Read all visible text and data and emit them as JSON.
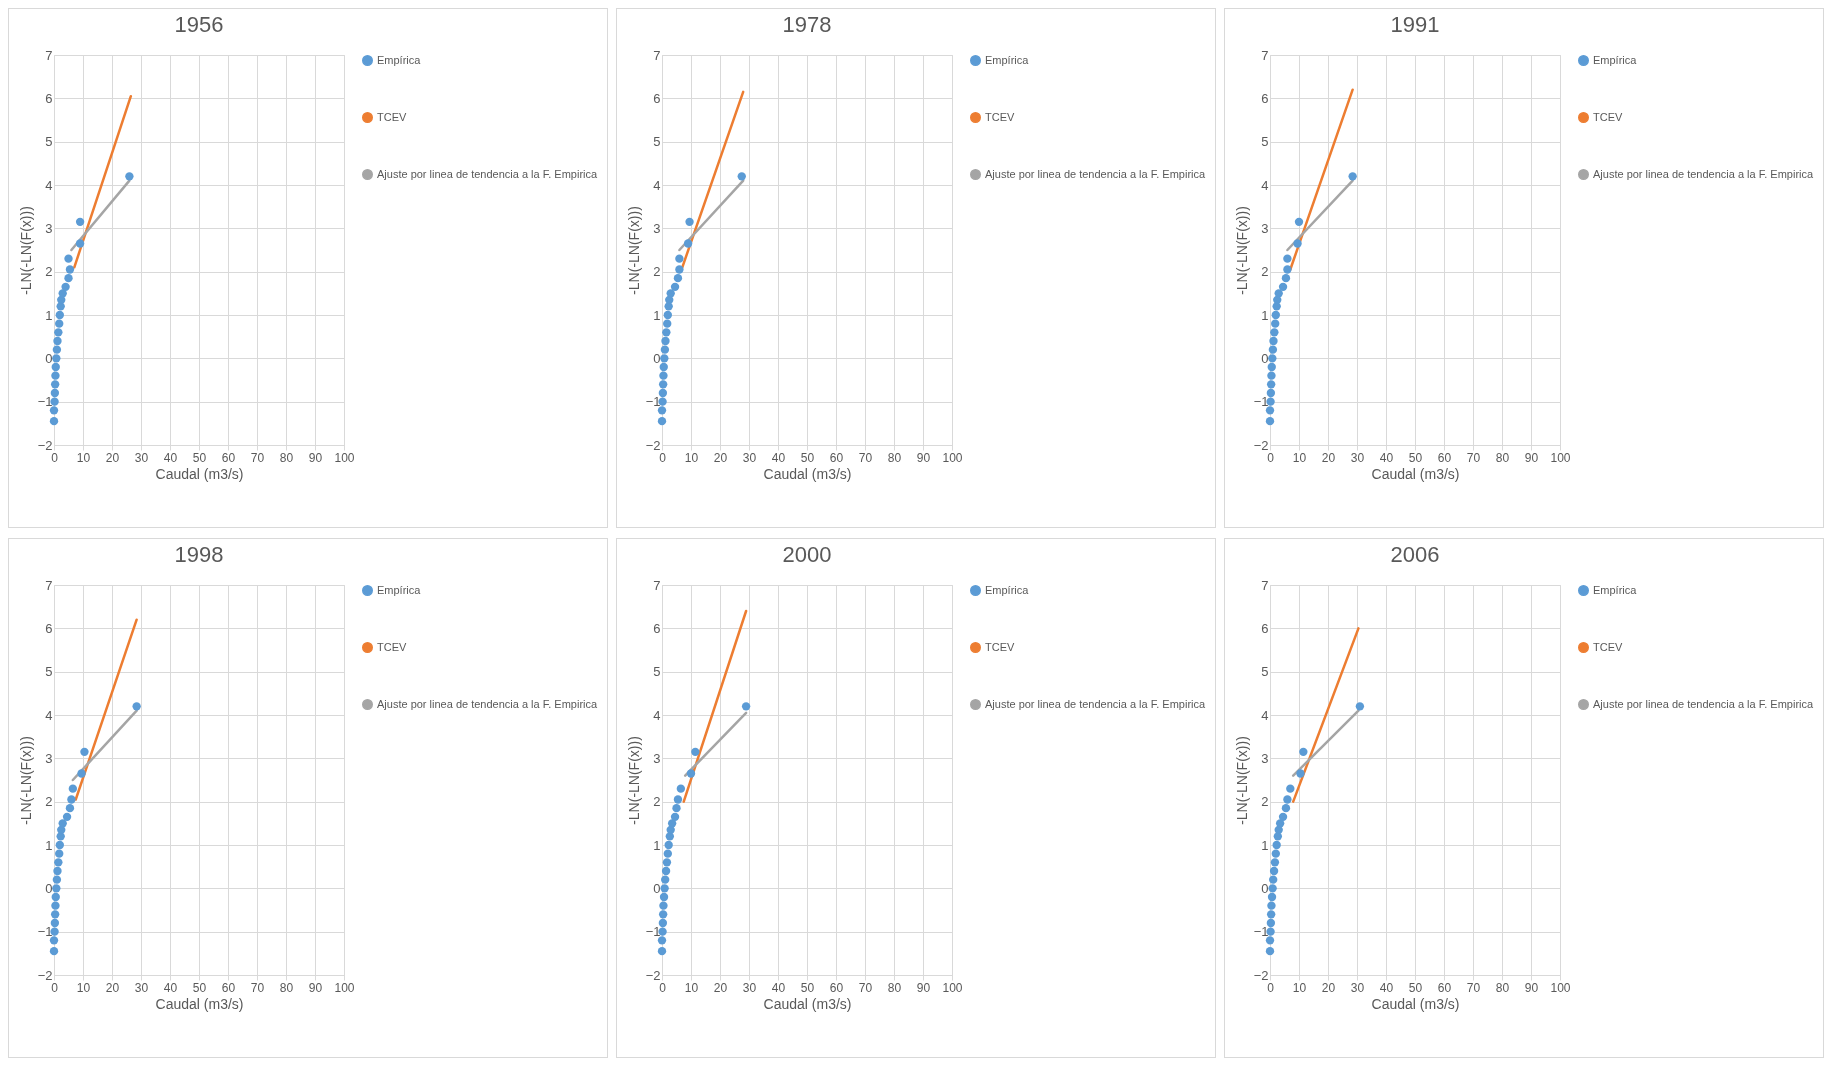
{
  "chart_data": [
    {
      "type": "scatter",
      "title": "1956",
      "xlabel": "Caudal (m3/s)",
      "ylabel": "-LN(-LN(F(x)))",
      "xlim": [
        0,
        100
      ],
      "ylim": [
        -2,
        7
      ],
      "xticks": [
        0,
        10,
        20,
        30,
        40,
        50,
        60,
        70,
        80,
        90,
        100
      ],
      "yticks": [
        -2,
        -1,
        0,
        1,
        2,
        3,
        4,
        5,
        6,
        7
      ],
      "grid": true,
      "legend": "right",
      "series": [
        {
          "name": "Empírica",
          "type": "scatter",
          "marker": "circle",
          "color": "#5b9bd5",
          "x": [
            0,
            0,
            0.2,
            0.3,
            0.4,
            0.5,
            0.6,
            0.8,
            1,
            1.2,
            1.5,
            1.8,
            2,
            2.3,
            2.5,
            3,
            4,
            5,
            5.5,
            5,
            9,
            9,
            26
          ],
          "values": [
            -1.45,
            -1.2,
            -1.0,
            -0.8,
            -0.6,
            -0.4,
            -0.2,
            0,
            0.2,
            0.4,
            0.6,
            0.8,
            1.0,
            1.2,
            1.35,
            1.5,
            1.65,
            1.85,
            2.05,
            2.3,
            2.65,
            3.15,
            4.2
          ]
        },
        {
          "name": "TCEV",
          "type": "line",
          "color": "#ed7d31",
          "x": [
            7,
            26.5
          ],
          "values": [
            2.1,
            6.05
          ]
        },
        {
          "name": "Ajuste por linea de tendencia a la F. Empirica",
          "type": "line",
          "color": "#a5a5a5",
          "x": [
            6,
            26
          ],
          "values": [
            2.5,
            4.1
          ]
        }
      ]
    },
    {
      "type": "scatter",
      "title": "1978",
      "xlabel": "Caudal (m3/s)",
      "ylabel": "-LN(-LN(F(x)))",
      "xlim": [
        0,
        100
      ],
      "ylim": [
        -2,
        7
      ],
      "xticks": [
        0,
        10,
        20,
        30,
        40,
        50,
        60,
        70,
        80,
        90,
        100
      ],
      "yticks": [
        -2,
        -1,
        0,
        1,
        2,
        3,
        4,
        5,
        6,
        7
      ],
      "grid": true,
      "legend": "right",
      "series": [
        {
          "name": "Empírica",
          "type": "scatter",
          "marker": "circle",
          "color": "#5b9bd5",
          "x": [
            0,
            0,
            0.2,
            0.3,
            0.4,
            0.5,
            0.6,
            0.8,
            1,
            1.2,
            1.5,
            1.8,
            2,
            2.3,
            2.5,
            3,
            4.5,
            5.5,
            6,
            6,
            9,
            9.5,
            27.5
          ],
          "values": [
            -1.45,
            -1.2,
            -1.0,
            -0.8,
            -0.6,
            -0.4,
            -0.2,
            0,
            0.2,
            0.4,
            0.6,
            0.8,
            1.0,
            1.2,
            1.35,
            1.5,
            1.65,
            1.85,
            2.05,
            2.3,
            2.65,
            3.15,
            4.2
          ]
        },
        {
          "name": "TCEV",
          "type": "line",
          "color": "#ed7d31",
          "x": [
            7,
            28
          ],
          "values": [
            2.1,
            6.15
          ]
        },
        {
          "name": "Ajuste por linea de tendencia a la F. Empirica",
          "type": "line",
          "color": "#a5a5a5",
          "x": [
            6,
            28
          ],
          "values": [
            2.5,
            4.1
          ]
        }
      ]
    },
    {
      "type": "scatter",
      "title": "1991",
      "xlabel": "Caudal (m3/s)",
      "ylabel": "-LN(-LN(F(x)))",
      "xlim": [
        0,
        100
      ],
      "ylim": [
        -2,
        7
      ],
      "xticks": [
        0,
        10,
        20,
        30,
        40,
        50,
        60,
        70,
        80,
        90,
        100
      ],
      "yticks": [
        -2,
        -1,
        0,
        1,
        2,
        3,
        4,
        5,
        6,
        7
      ],
      "grid": true,
      "legend": "right",
      "series": [
        {
          "name": "Empírica",
          "type": "scatter",
          "marker": "circle",
          "color": "#5b9bd5",
          "x": [
            0,
            0,
            0.2,
            0.3,
            0.4,
            0.5,
            0.6,
            0.8,
            1,
            1.2,
            1.5,
            1.8,
            2,
            2.3,
            2.5,
            3,
            4.5,
            5.5,
            6,
            6,
            9.5,
            10,
            28.5
          ],
          "values": [
            -1.45,
            -1.2,
            -1.0,
            -0.8,
            -0.6,
            -0.4,
            -0.2,
            0,
            0.2,
            0.4,
            0.6,
            0.8,
            1.0,
            1.2,
            1.35,
            1.5,
            1.65,
            1.85,
            2.05,
            2.3,
            2.65,
            3.15,
            4.2
          ]
        },
        {
          "name": "TCEV",
          "type": "line",
          "color": "#ed7d31",
          "x": [
            7,
            28.5
          ],
          "values": [
            2.05,
            6.2
          ]
        },
        {
          "name": "Ajuste por linea de tendencia a la F. Empirica",
          "type": "line",
          "color": "#a5a5a5",
          "x": [
            6,
            28.5
          ],
          "values": [
            2.5,
            4.1
          ]
        }
      ]
    },
    {
      "type": "scatter",
      "title": "1998",
      "xlabel": "Caudal (m3/s)",
      "ylabel": "-LN(-LN(F(x)))",
      "xlim": [
        0,
        100
      ],
      "ylim": [
        -2,
        7
      ],
      "xticks": [
        0,
        10,
        20,
        30,
        40,
        50,
        60,
        70,
        80,
        90,
        100
      ],
      "yticks": [
        -2,
        -1,
        0,
        1,
        2,
        3,
        4,
        5,
        6,
        7
      ],
      "grid": true,
      "legend": "right",
      "series": [
        {
          "name": "Empírica",
          "type": "scatter",
          "marker": "circle",
          "color": "#5b9bd5",
          "x": [
            0,
            0,
            0.2,
            0.3,
            0.4,
            0.5,
            0.6,
            0.8,
            1,
            1.2,
            1.5,
            1.8,
            2,
            2.3,
            2.5,
            3,
            4.5,
            5.5,
            6,
            6.5,
            9.5,
            10.5,
            28.5
          ],
          "values": [
            -1.45,
            -1.2,
            -1.0,
            -0.8,
            -0.6,
            -0.4,
            -0.2,
            0,
            0.2,
            0.4,
            0.6,
            0.8,
            1.0,
            1.2,
            1.35,
            1.5,
            1.65,
            1.85,
            2.05,
            2.3,
            2.65,
            3.15,
            4.2
          ]
        },
        {
          "name": "TCEV",
          "type": "line",
          "color": "#ed7d31",
          "x": [
            7.5,
            28.5
          ],
          "values": [
            2.05,
            6.2
          ]
        },
        {
          "name": "Ajuste por linea de tendencia a la F. Empirica",
          "type": "line",
          "color": "#a5a5a5",
          "x": [
            6.5,
            28.5
          ],
          "values": [
            2.5,
            4.1
          ]
        }
      ]
    },
    {
      "type": "scatter",
      "title": "2000",
      "xlabel": "Caudal (m3/s)",
      "ylabel": "-LN(-LN(F(x)))",
      "xlim": [
        0,
        100
      ],
      "ylim": [
        -2,
        7
      ],
      "xticks": [
        0,
        10,
        20,
        30,
        40,
        50,
        60,
        70,
        80,
        90,
        100
      ],
      "yticks": [
        -2,
        -1,
        0,
        1,
        2,
        3,
        4,
        5,
        6,
        7
      ],
      "grid": true,
      "legend": "right",
      "series": [
        {
          "name": "Empírica",
          "type": "scatter",
          "marker": "circle",
          "color": "#5b9bd5",
          "x": [
            0,
            0,
            0.2,
            0.3,
            0.4,
            0.5,
            0.7,
            0.9,
            1.1,
            1.4,
            1.7,
            2,
            2.3,
            2.7,
            3,
            3.5,
            4.5,
            5,
            5.5,
            6.5,
            10,
            11.5,
            29
          ],
          "values": [
            -1.45,
            -1.2,
            -1.0,
            -0.8,
            -0.6,
            -0.4,
            -0.2,
            0,
            0.2,
            0.4,
            0.6,
            0.8,
            1.0,
            1.2,
            1.35,
            1.5,
            1.65,
            1.85,
            2.05,
            2.3,
            2.65,
            3.15,
            4.2
          ]
        },
        {
          "name": "TCEV",
          "type": "line",
          "color": "#ed7d31",
          "x": [
            7.5,
            29
          ],
          "values": [
            2.0,
            6.4
          ]
        },
        {
          "name": "Ajuste por linea de tendencia a la F. Empirica",
          "type": "line",
          "color": "#a5a5a5",
          "x": [
            8,
            29
          ],
          "values": [
            2.6,
            4.05
          ]
        }
      ]
    },
    {
      "type": "scatter",
      "title": "2006",
      "xlabel": "Caudal (m3/s)",
      "ylabel": "-LN(-LN(F(x)))",
      "xlim": [
        0,
        100
      ],
      "ylim": [
        -2,
        7
      ],
      "xticks": [
        0,
        10,
        20,
        30,
        40,
        50,
        60,
        70,
        80,
        90,
        100
      ],
      "yticks": [
        -2,
        -1,
        0,
        1,
        2,
        3,
        4,
        5,
        6,
        7
      ],
      "grid": true,
      "legend": "right",
      "series": [
        {
          "name": "Empírica",
          "type": "scatter",
          "marker": "circle",
          "color": "#5b9bd5",
          "x": [
            0,
            0,
            0.2,
            0.3,
            0.4,
            0.5,
            0.7,
            0.9,
            1.1,
            1.4,
            1.7,
            2,
            2.3,
            2.7,
            3,
            3.5,
            4.5,
            5.5,
            6,
            7,
            10.5,
            11.5,
            31
          ],
          "values": [
            -1.45,
            -1.2,
            -1.0,
            -0.8,
            -0.6,
            -0.4,
            -0.2,
            0,
            0.2,
            0.4,
            0.6,
            0.8,
            1.0,
            1.2,
            1.35,
            1.5,
            1.65,
            1.85,
            2.05,
            2.3,
            2.65,
            3.15,
            4.2
          ]
        },
        {
          "name": "TCEV",
          "type": "line",
          "color": "#ed7d31",
          "x": [
            8,
            30.5
          ],
          "values": [
            2.0,
            6.0
          ]
        },
        {
          "name": "Ajuste por linea de tendencia a la F. Empirica",
          "type": "line",
          "color": "#a5a5a5",
          "x": [
            8,
            30.5
          ],
          "values": [
            2.6,
            4.1
          ]
        }
      ]
    }
  ]
}
